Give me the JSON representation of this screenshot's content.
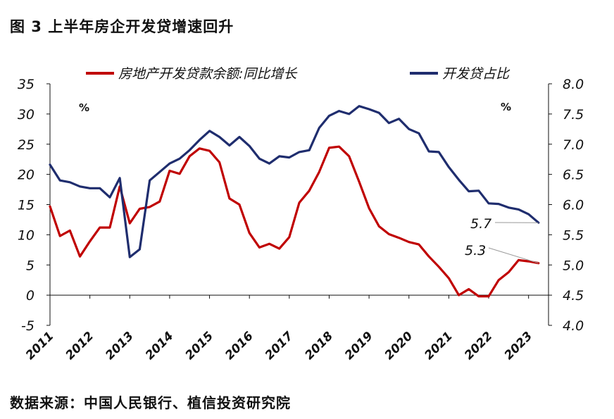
{
  "header": {
    "title": "图 3  上半年房企开发贷增速回升"
  },
  "footer": {
    "source": "数据来源：中国人民银行、植信投资研究院"
  },
  "colors": {
    "red_series": "#c00000",
    "blue_series": "#1f2d6e",
    "axis": "#111111",
    "annotation_line": "#999999"
  },
  "chart_data": {
    "type": "line",
    "title": "",
    "xlabel": "",
    "ylabel": "%",
    "y2label": "%",
    "ylim": [
      -5,
      35
    ],
    "y2lim": [
      4.0,
      8.0
    ],
    "y_ticks": [
      "35",
      "30",
      "25",
      "20",
      "15",
      "10",
      "5",
      "0",
      "-5"
    ],
    "y2_ticks": [
      "8.0",
      "7.5",
      "7.0",
      "6.5",
      "6.0",
      "5.5",
      "5.0",
      "4.5",
      "4.0"
    ],
    "x_ticks": [
      "2011",
      "2012",
      "2013",
      "2014",
      "2015",
      "2016",
      "2017",
      "2018",
      "2019",
      "2020",
      "2021",
      "2022",
      "2023"
    ],
    "x_range": [
      2011.0,
      2023.5
    ],
    "grid": false,
    "legend_position": "top",
    "series": [
      {
        "name": "房地产开发贷款余额:同比增长",
        "axis": "left",
        "color": "#c00000",
        "x": [
          2011.0,
          2011.25,
          2011.5,
          2011.75,
          2012.0,
          2012.25,
          2012.5,
          2012.75,
          2013.0,
          2013.25,
          2013.5,
          2013.75,
          2014.0,
          2014.25,
          2014.5,
          2014.75,
          2015.0,
          2015.25,
          2015.5,
          2015.75,
          2016.0,
          2016.25,
          2016.5,
          2016.75,
          2017.0,
          2017.25,
          2017.5,
          2017.75,
          2018.0,
          2018.25,
          2018.5,
          2018.75,
          2019.0,
          2019.25,
          2019.5,
          2019.75,
          2020.0,
          2020.25,
          2020.5,
          2020.75,
          2021.0,
          2021.25,
          2021.5,
          2021.75,
          2022.0,
          2022.25,
          2022.5,
          2022.75,
          2023.0,
          2023.25
        ],
        "values": [
          14.7,
          9.8,
          10.7,
          6.4,
          8.9,
          11.2,
          11.2,
          18.0,
          11.9,
          14.3,
          14.6,
          15.5,
          20.6,
          20.1,
          23.0,
          24.3,
          23.9,
          22.0,
          16.0,
          15.0,
          10.3,
          7.9,
          8.5,
          7.7,
          9.6,
          15.3,
          17.3,
          20.4,
          24.4,
          24.6,
          23.0,
          18.8,
          14.4,
          11.4,
          10.1,
          9.5,
          8.8,
          8.4,
          6.4,
          4.7,
          2.8,
          0.0,
          1.0,
          -0.2,
          -0.2,
          2.5,
          3.8,
          5.8,
          5.6,
          5.3
        ]
      },
      {
        "name": "开发贷占比",
        "axis": "right",
        "color": "#1f2d6e",
        "x": [
          2011.0,
          2011.25,
          2011.5,
          2011.75,
          2012.0,
          2012.25,
          2012.5,
          2012.75,
          2013.0,
          2013.25,
          2013.5,
          2013.75,
          2014.0,
          2014.25,
          2014.5,
          2014.75,
          2015.0,
          2015.25,
          2015.5,
          2015.75,
          2016.0,
          2016.25,
          2016.5,
          2016.75,
          2017.0,
          2017.25,
          2017.5,
          2017.75,
          2018.0,
          2018.25,
          2018.5,
          2018.75,
          2019.0,
          2019.25,
          2019.5,
          2019.75,
          2020.0,
          2020.25,
          2020.5,
          2020.75,
          2021.0,
          2021.25,
          2021.5,
          2021.75,
          2022.0,
          2022.25,
          2022.5,
          2022.75,
          2023.0,
          2023.25
        ],
        "values": [
          6.66,
          6.4,
          6.37,
          6.3,
          6.27,
          6.27,
          6.12,
          6.44,
          5.13,
          5.26,
          6.4,
          6.54,
          6.68,
          6.76,
          6.9,
          7.07,
          7.22,
          7.12,
          6.98,
          7.12,
          6.97,
          6.76,
          6.68,
          6.8,
          6.78,
          6.87,
          6.9,
          7.27,
          7.47,
          7.55,
          7.5,
          7.63,
          7.58,
          7.52,
          7.35,
          7.42,
          7.25,
          7.18,
          6.88,
          6.87,
          6.62,
          6.41,
          6.22,
          6.23,
          6.02,
          6.01,
          5.95,
          5.92,
          5.84,
          5.7
        ]
      }
    ],
    "annotations": [
      {
        "text": "5.7",
        "series": "开发贷占比"
      },
      {
        "text": "5.3",
        "series": "房地产开发贷款余额:同比增长"
      }
    ]
  }
}
